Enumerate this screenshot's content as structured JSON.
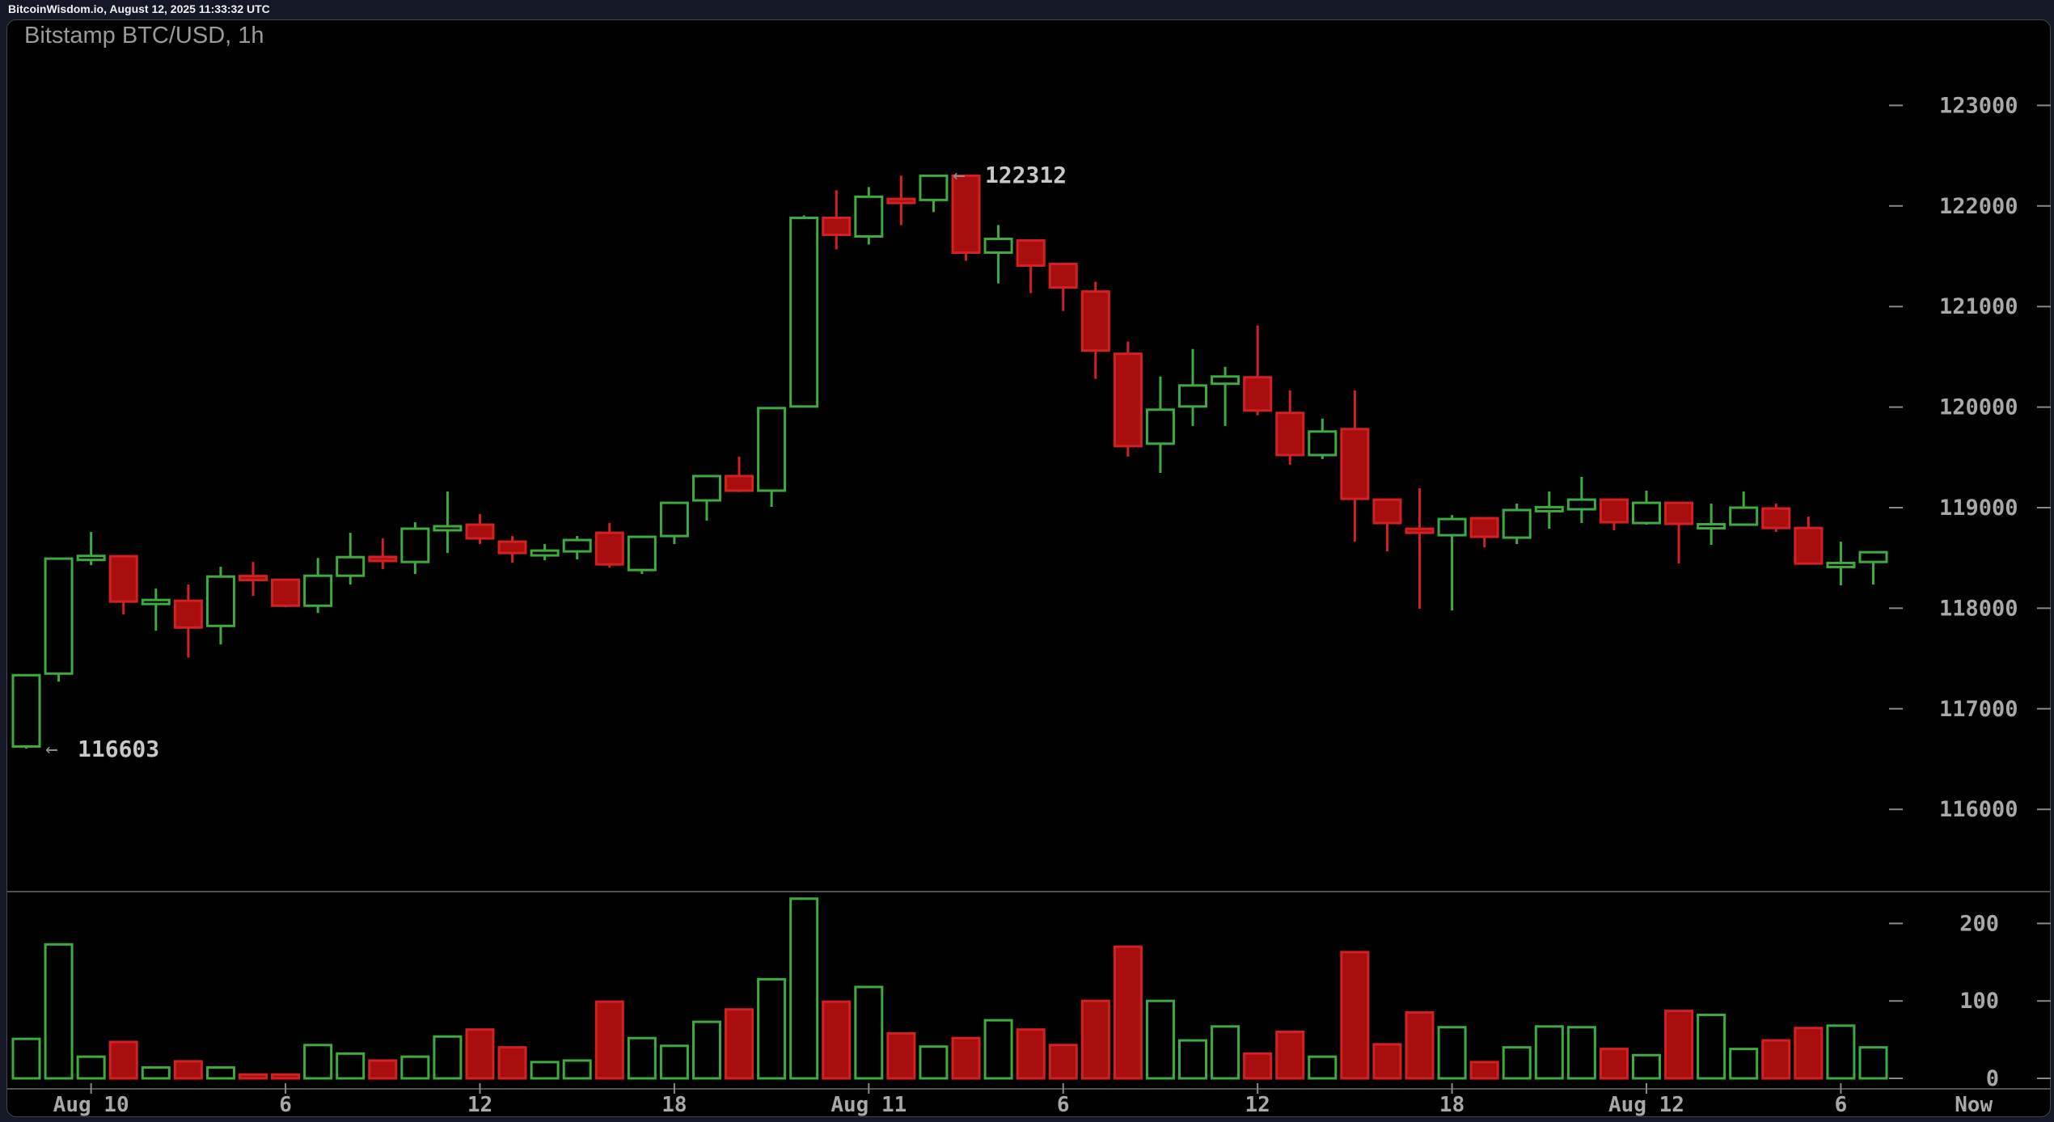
{
  "topbar": {
    "text": "BitcoinWisdom.io, August 12, 2025 11:33:32 UTC"
  },
  "chart": {
    "title": "Bitstamp BTC/USD, 1h"
  },
  "chart_data": {
    "type": "candlestick",
    "exchange": "Bitstamp",
    "pair": "BTC/USD",
    "interval": "1h",
    "title": "Bitstamp BTC/USD, 1h",
    "grid": false,
    "price_axis": {
      "ticks": [
        123000,
        122000,
        121000,
        120000,
        119000,
        118000,
        117000,
        116000
      ]
    },
    "volume_axis": {
      "ticks": [
        200,
        100,
        0
      ]
    },
    "time_axis": {
      "labels": [
        {
          "text": "Aug 10",
          "slot": 2,
          "tick": true
        },
        {
          "text": "6",
          "slot": 8,
          "tick": true
        },
        {
          "text": "12",
          "slot": 14,
          "tick": true
        },
        {
          "text": "18",
          "slot": 20,
          "tick": true
        },
        {
          "text": "Aug 11",
          "slot": 26,
          "tick": true
        },
        {
          "text": "6",
          "slot": 32,
          "tick": true
        },
        {
          "text": "12",
          "slot": 38,
          "tick": true
        },
        {
          "text": "18",
          "slot": 44,
          "tick": true
        },
        {
          "text": "Aug 12",
          "slot": 50,
          "tick": true
        },
        {
          "text": "6",
          "slot": 56,
          "tick": true
        },
        {
          "text": "Now",
          "slot": 60.1,
          "tick": false
        }
      ]
    },
    "annotations": [
      {
        "text": "122312",
        "candle": 28,
        "price": 122312
      },
      {
        "text": "116603",
        "candle": 0,
        "price": 116603
      }
    ],
    "colors": {
      "up": "#3DAB3D",
      "down_fill": "#A80E0E",
      "down_border": "#D32020",
      "axis_text": "#a8a8a8",
      "annotation_text": "#c8c8c8",
      "grid_line": "#6e6e6e",
      "tick_dash": "#8a8a8a"
    },
    "columns": [
      "time",
      "open",
      "high",
      "low",
      "close",
      "volume"
    ],
    "candles": [
      [
        "Aug 9 22:00",
        116625,
        117340,
        116603,
        117334,
        51
      ],
      [
        "Aug 9 23:00",
        117350,
        118495,
        117270,
        118493,
        173
      ],
      [
        "Aug 10 00:00",
        118500,
        118758,
        118428,
        118520,
        28
      ],
      [
        "Aug 10 01:00",
        118517,
        118530,
        117937,
        118066,
        47
      ],
      [
        "Aug 10 02:00",
        118068,
        118195,
        117776,
        118082,
        14
      ],
      [
        "Aug 10 03:00",
        118074,
        118235,
        117510,
        117808,
        22
      ],
      [
        "Aug 10 04:00",
        117824,
        118412,
        117639,
        118315,
        14
      ],
      [
        "Aug 10 05:00",
        118320,
        118460,
        118122,
        118300,
        5
      ],
      [
        "Aug 10 06:00",
        118283,
        118290,
        118010,
        118025,
        5
      ],
      [
        "Aug 10 07:00",
        118025,
        118500,
        117953,
        118323,
        43
      ],
      [
        "Aug 10 08:00",
        118323,
        118750,
        118235,
        118508,
        32
      ],
      [
        "Aug 10 09:00",
        118510,
        118694,
        118388,
        118490,
        23
      ],
      [
        "Aug 10 10:00",
        118460,
        118855,
        118340,
        118791,
        28
      ],
      [
        "Aug 10 11:00",
        118800,
        119161,
        118549,
        118815,
        54
      ],
      [
        "Aug 10 12:00",
        118831,
        118936,
        118638,
        118694,
        63
      ],
      [
        "Aug 10 13:00",
        118662,
        118718,
        118452,
        118549,
        40
      ],
      [
        "Aug 10 14:00",
        118525,
        118638,
        118477,
        118573,
        21
      ],
      [
        "Aug 10 15:00",
        118565,
        118718,
        118485,
        118678,
        23
      ],
      [
        "Aug 10 16:00",
        118750,
        118847,
        118404,
        118436,
        99
      ],
      [
        "Aug 10 17:00",
        118380,
        118720,
        118340,
        118710,
        52
      ],
      [
        "Aug 10 18:00",
        118718,
        119050,
        118638,
        119048,
        42
      ],
      [
        "Aug 10 19:00",
        119072,
        119320,
        118871,
        119314,
        73
      ],
      [
        "Aug 10 20:00",
        119314,
        119507,
        119155,
        119169,
        89
      ],
      [
        "Aug 10 21:00",
        119169,
        119995,
        119008,
        119990,
        128
      ],
      [
        "Aug 10 22:00",
        120006,
        121906,
        120000,
        121882,
        232
      ],
      [
        "Aug 10 23:00",
        121882,
        122156,
        121568,
        121713,
        99
      ],
      [
        "Aug 11 00:00",
        121697,
        122188,
        121617,
        122092,
        118
      ],
      [
        "Aug 11 01:00",
        122070,
        122301,
        121810,
        122050,
        58
      ],
      [
        "Aug 11 02:00",
        122060,
        122312,
        121939,
        122301,
        41
      ],
      [
        "Aug 11 03:00",
        122301,
        122305,
        121456,
        121536,
        52
      ],
      [
        "Aug 11 04:00",
        121536,
        121810,
        121230,
        121673,
        75
      ],
      [
        "Aug 11 05:00",
        121657,
        121660,
        121133,
        121407,
        63
      ],
      [
        "Aug 11 06:00",
        121423,
        121431,
        120956,
        121190,
        43
      ],
      [
        "Aug 11 07:00",
        121149,
        121246,
        120280,
        120562,
        100
      ],
      [
        "Aug 11 08:00",
        120530,
        120651,
        119507,
        119612,
        170
      ],
      [
        "Aug 11 09:00",
        119636,
        120304,
        119346,
        119974,
        100
      ],
      [
        "Aug 11 10:00",
        120006,
        120578,
        119813,
        120215,
        49
      ],
      [
        "Aug 11 11:00",
        120232,
        120401,
        119813,
        120304,
        67
      ],
      [
        "Aug 11 12:00",
        120296,
        120812,
        119918,
        119966,
        32
      ],
      [
        "Aug 11 13:00",
        119942,
        120167,
        119427,
        119523,
        60
      ],
      [
        "Aug 11 14:00",
        119523,
        119886,
        119483,
        119757,
        28
      ],
      [
        "Aug 11 15:00",
        119781,
        120167,
        118662,
        119088,
        163
      ],
      [
        "Aug 11 16:00",
        119080,
        119085,
        118565,
        118847,
        44
      ],
      [
        "Aug 11 17:00",
        118790,
        119193,
        117994,
        118750,
        85
      ],
      [
        "Aug 11 18:00",
        118726,
        118927,
        117978,
        118887,
        66
      ],
      [
        "Aug 11 19:00",
        118895,
        118900,
        118605,
        118710,
        21
      ],
      [
        "Aug 11 20:00",
        118702,
        119040,
        118638,
        118976,
        40
      ],
      [
        "Aug 11 21:00",
        118995,
        119161,
        118791,
        119005,
        67
      ],
      [
        "Aug 11 22:00",
        118984,
        119306,
        118847,
        119080,
        66
      ],
      [
        "Aug 11 23:00",
        119080,
        119088,
        118775,
        118855,
        38
      ],
      [
        "Aug 12 00:00",
        118847,
        119169,
        118831,
        119048,
        30
      ],
      [
        "Aug 12 01:00",
        119048,
        119056,
        118444,
        118839,
        87
      ],
      [
        "Aug 12 02:00",
        118825,
        119040,
        118630,
        118835,
        82
      ],
      [
        "Aug 12 03:00",
        118831,
        119161,
        118825,
        119000,
        38
      ],
      [
        "Aug 12 04:00",
        118992,
        119040,
        118758,
        118798,
        49
      ],
      [
        "Aug 12 05:00",
        118798,
        118911,
        118440,
        118444,
        65
      ],
      [
        "Aug 12 06:00",
        118440,
        118662,
        118227,
        118450,
        68
      ],
      [
        "Aug 12 07:00",
        118460,
        118560,
        118235,
        118557,
        40
      ]
    ]
  }
}
